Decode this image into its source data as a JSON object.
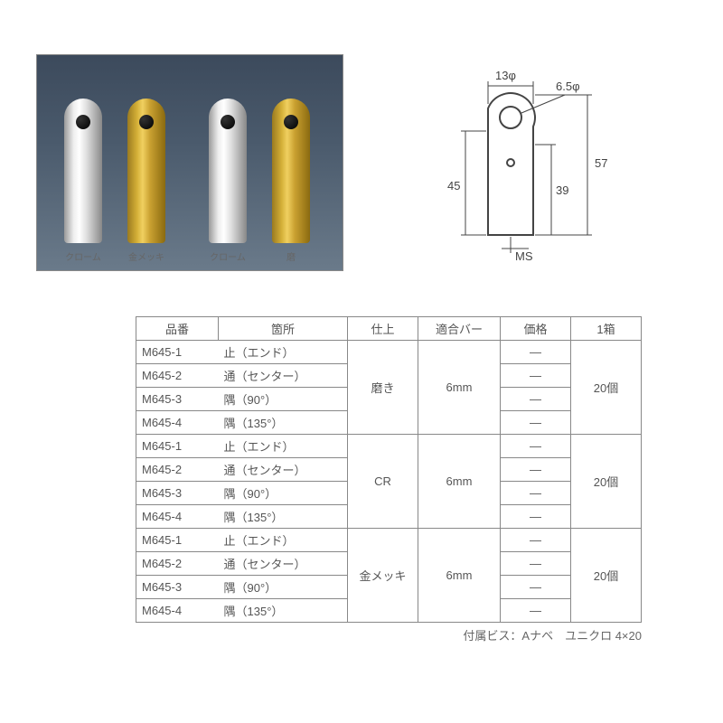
{
  "photo": {
    "labels": [
      "クローム",
      "金メッキ",
      "クローム",
      "磨"
    ]
  },
  "diagram": {
    "dim_top_width": "13φ",
    "dim_hole": "6.5φ",
    "dim_left_height": "45",
    "dim_inner_height": "39",
    "dim_total_height": "57",
    "dim_bottom": "MS"
  },
  "table": {
    "headers": [
      "品番",
      "箇所",
      "仕上",
      "適合バー",
      "価格",
      "1箱"
    ],
    "groups": [
      {
        "finish": "磨き",
        "bar": "6mm",
        "box": "20個",
        "rows": [
          {
            "code": "M645-1",
            "place": "止（エンド）",
            "price": "—"
          },
          {
            "code": "M645-2",
            "place": "通（センター）",
            "price": "—"
          },
          {
            "code": "M645-3",
            "place": "隅（90°）",
            "price": "—"
          },
          {
            "code": "M645-4",
            "place": "隅（135°）",
            "price": "—"
          }
        ]
      },
      {
        "finish": "CR",
        "bar": "6mm",
        "box": "20個",
        "rows": [
          {
            "code": "M645-1",
            "place": "止（エンド）",
            "price": "—"
          },
          {
            "code": "M645-2",
            "place": "通（センター）",
            "price": "—"
          },
          {
            "code": "M645-3",
            "place": "隅（90°）",
            "price": "—"
          },
          {
            "code": "M645-4",
            "place": "隅（135°）",
            "price": "—"
          }
        ]
      },
      {
        "finish": "金メッキ",
        "bar": "6mm",
        "box": "20個",
        "rows": [
          {
            "code": "M645-1",
            "place": "止（エンド）",
            "price": "—"
          },
          {
            "code": "M645-2",
            "place": "通（センター）",
            "price": "—"
          },
          {
            "code": "M645-3",
            "place": "隅（90°）",
            "price": "—"
          },
          {
            "code": "M645-4",
            "place": "隅（135°）",
            "price": "—"
          }
        ]
      }
    ],
    "footnote": "付属ビス：Aナベ　ユニクロ 4×20"
  }
}
